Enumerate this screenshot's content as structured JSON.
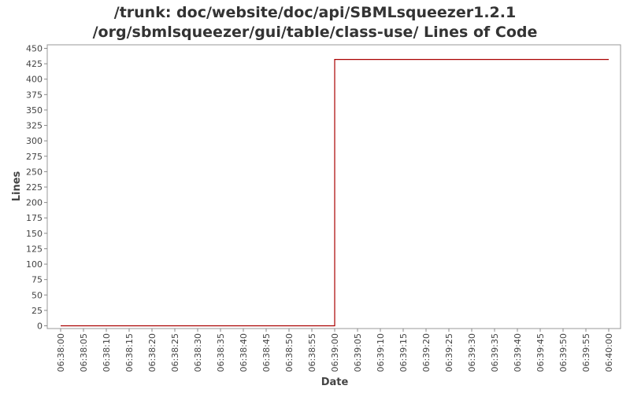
{
  "chart_data": {
    "type": "line",
    "title_lines": [
      "/trunk: doc/website/doc/api/SBMLsqueezer1.2.1",
      "/org/sbmlsqueezer/gui/table/class-use/ Lines of Code"
    ],
    "xlabel": "Date",
    "ylabel": "Lines",
    "ylim": [
      0,
      450
    ],
    "y_ticks": [
      0,
      25,
      50,
      75,
      100,
      125,
      150,
      175,
      200,
      225,
      250,
      275,
      300,
      325,
      350,
      375,
      400,
      425,
      450
    ],
    "x_ticks": [
      "06:38:00",
      "06:38:05",
      "06:38:10",
      "06:38:15",
      "06:38:20",
      "06:38:25",
      "06:38:30",
      "06:38:35",
      "06:38:40",
      "06:38:45",
      "06:38:50",
      "06:38:55",
      "06:39:00",
      "06:39:05",
      "06:39:10",
      "06:39:15",
      "06:39:20",
      "06:39:25",
      "06:39:30",
      "06:39:35",
      "06:39:40",
      "06:39:45",
      "06:39:50",
      "06:39:55",
      "06:40:00"
    ],
    "xlim": [
      "06:38:00",
      "06:40:00"
    ],
    "series": [
      {
        "color": "#aa0000",
        "step": true,
        "points": [
          {
            "x": "06:38:00",
            "y": 0
          },
          {
            "x": "06:39:00",
            "y": 432
          },
          {
            "x": "06:40:00",
            "y": 432
          }
        ]
      }
    ],
    "grid": false
  }
}
